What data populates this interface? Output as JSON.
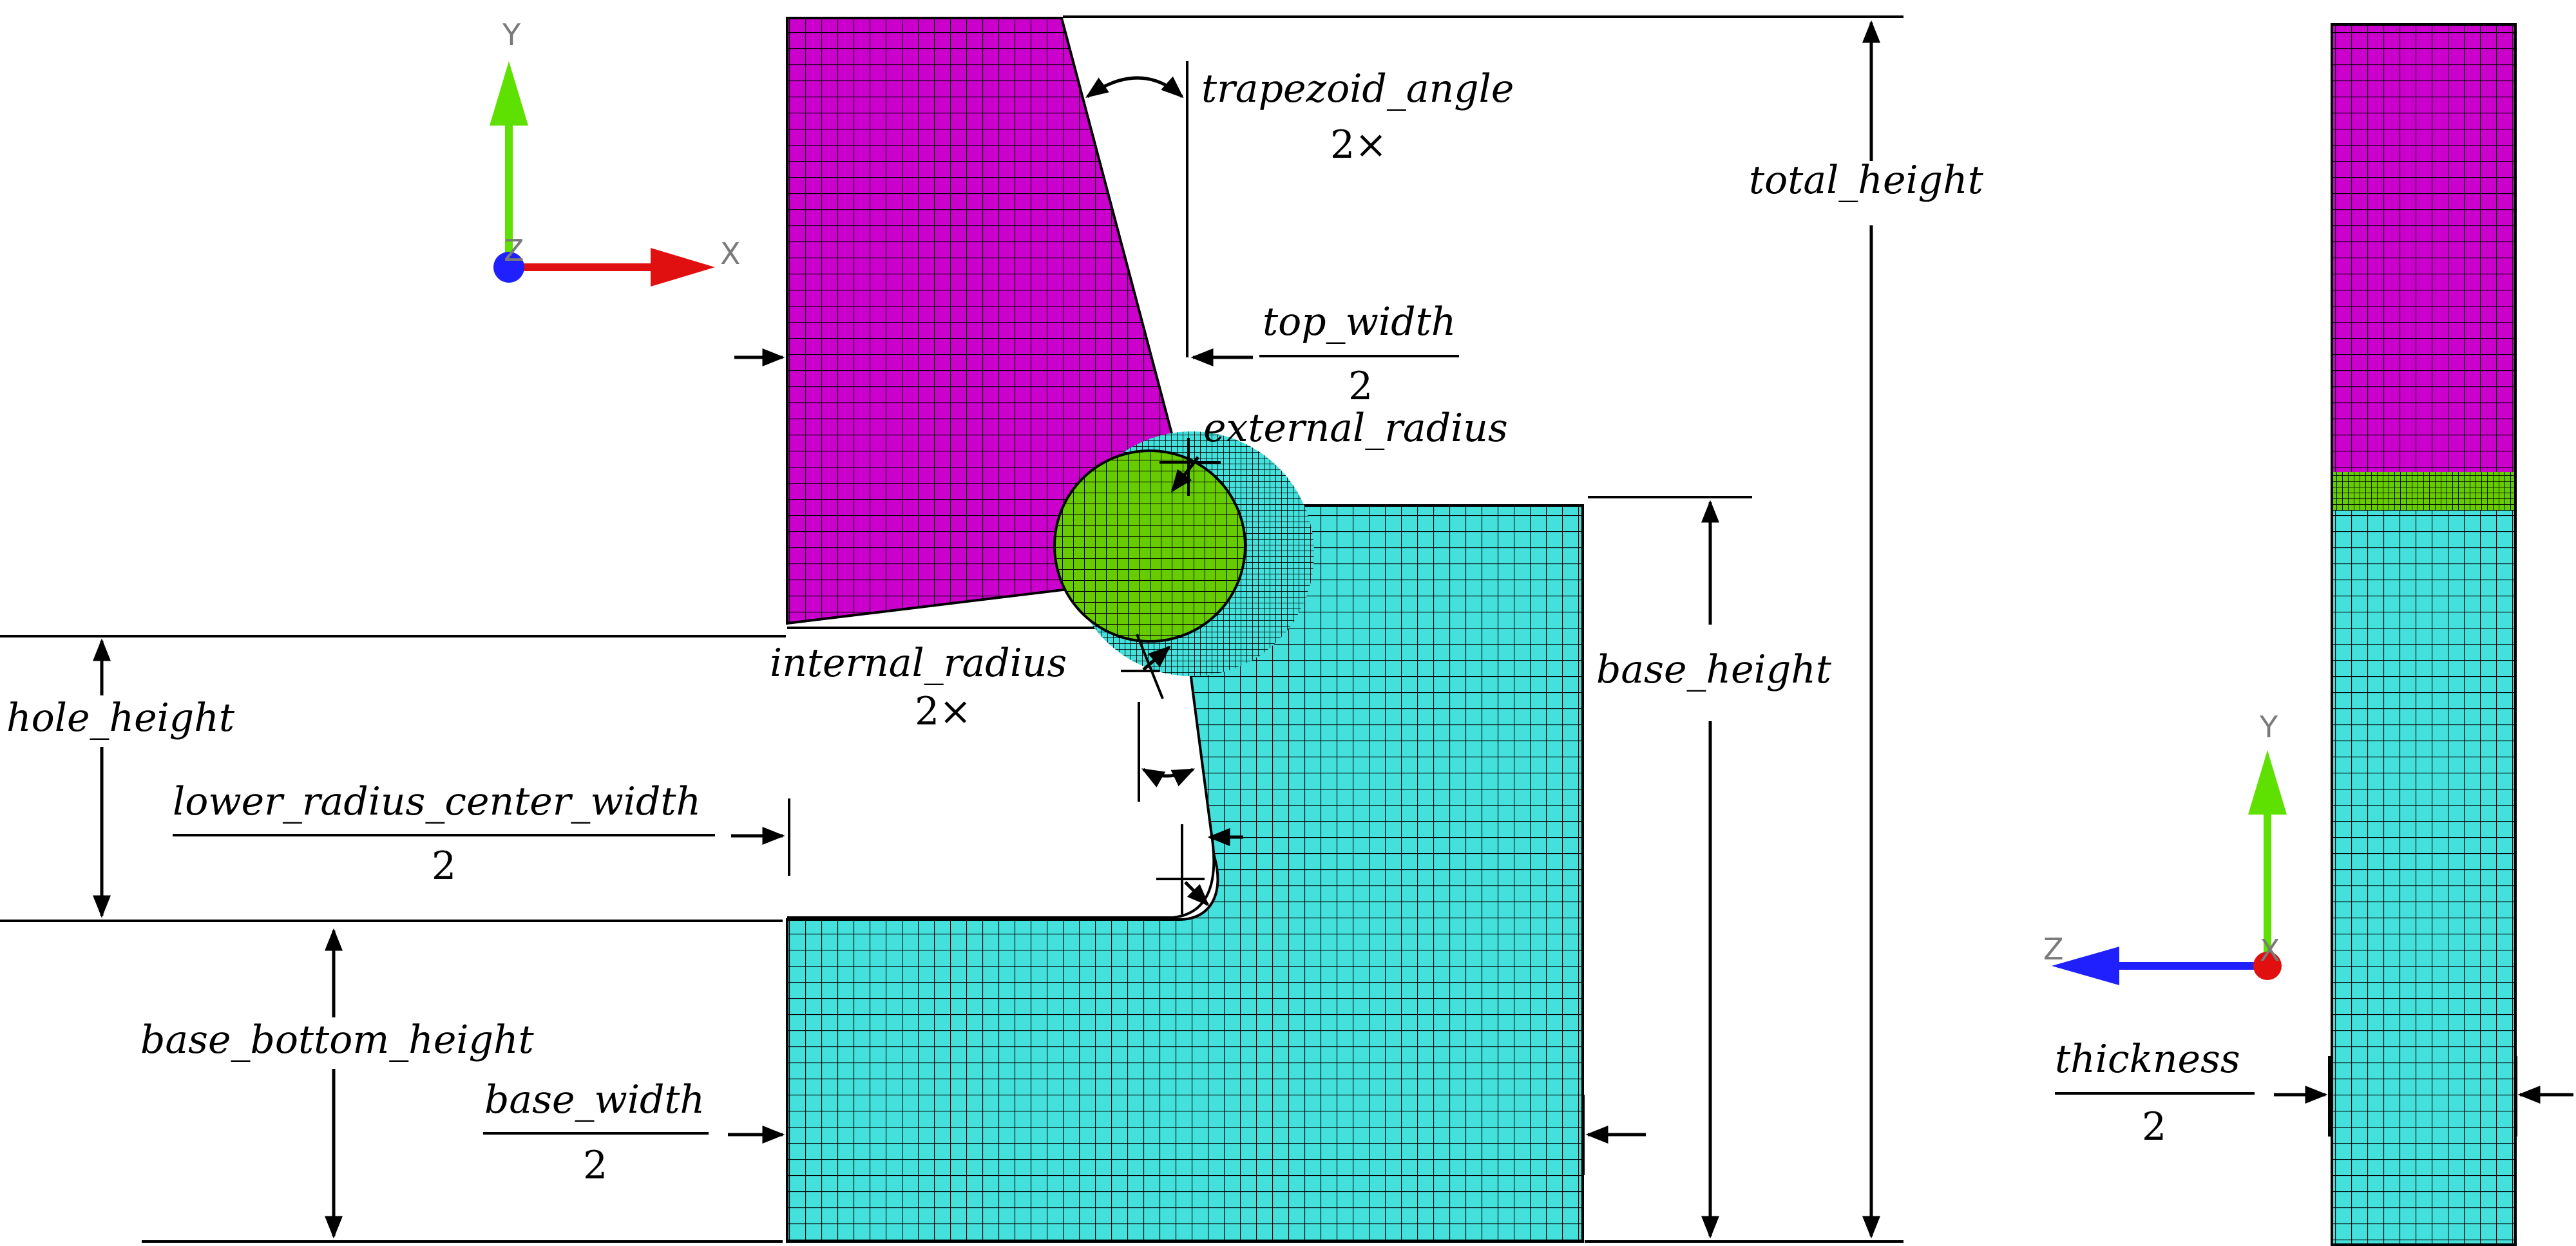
{
  "labels": {
    "trapezoid_angle": "trapezoid_angle",
    "trapezoid_angle_mult": "2×",
    "total_height": "total_height",
    "top_width": "top_width",
    "top_width_div": "2",
    "external_radius": "external_radius",
    "internal_radius": "internal_radius",
    "internal_radius_mult": "2×",
    "base_height": "base_height",
    "hole_height": "hole_height",
    "lower_radius_center_width": "lower_radius_center_width",
    "lower_radius_center_width_div": "2",
    "base_bottom_height": "base_bottom_height",
    "base_width": "base_width",
    "base_width_div": "2",
    "thickness": "thickness",
    "thickness_div": "2"
  },
  "axes_front": {
    "y": "Y",
    "x": "X",
    "z": "Z"
  },
  "axes_side": {
    "y": "Y",
    "z": "Z",
    "x": "X"
  },
  "colors": {
    "top_part": "#cc00cc",
    "weld_region": "#66cc00",
    "base_part": "#44e0dc",
    "axis_x": "#e01010",
    "axis_y": "#5ee000",
    "axis_z": "#2020ff"
  }
}
